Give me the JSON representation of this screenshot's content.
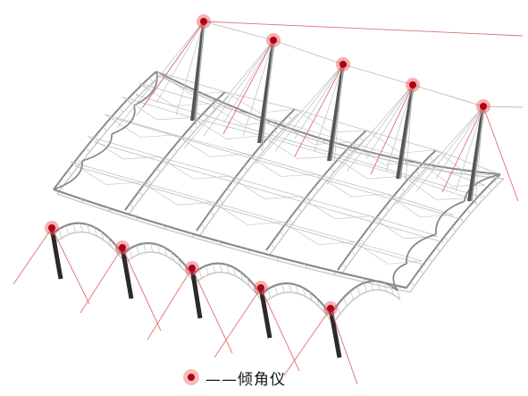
{
  "legend": {
    "label": "——倾角仪",
    "marker_color": "#b0001a",
    "marker_halo_color": "#e85050"
  },
  "sensor_count": 10,
  "colors": {
    "truss": "#8a8a8a",
    "truss_light": "#c8c8c8",
    "mast": "#555555",
    "cable": "#e07070",
    "tie": "#bdbdbd"
  }
}
